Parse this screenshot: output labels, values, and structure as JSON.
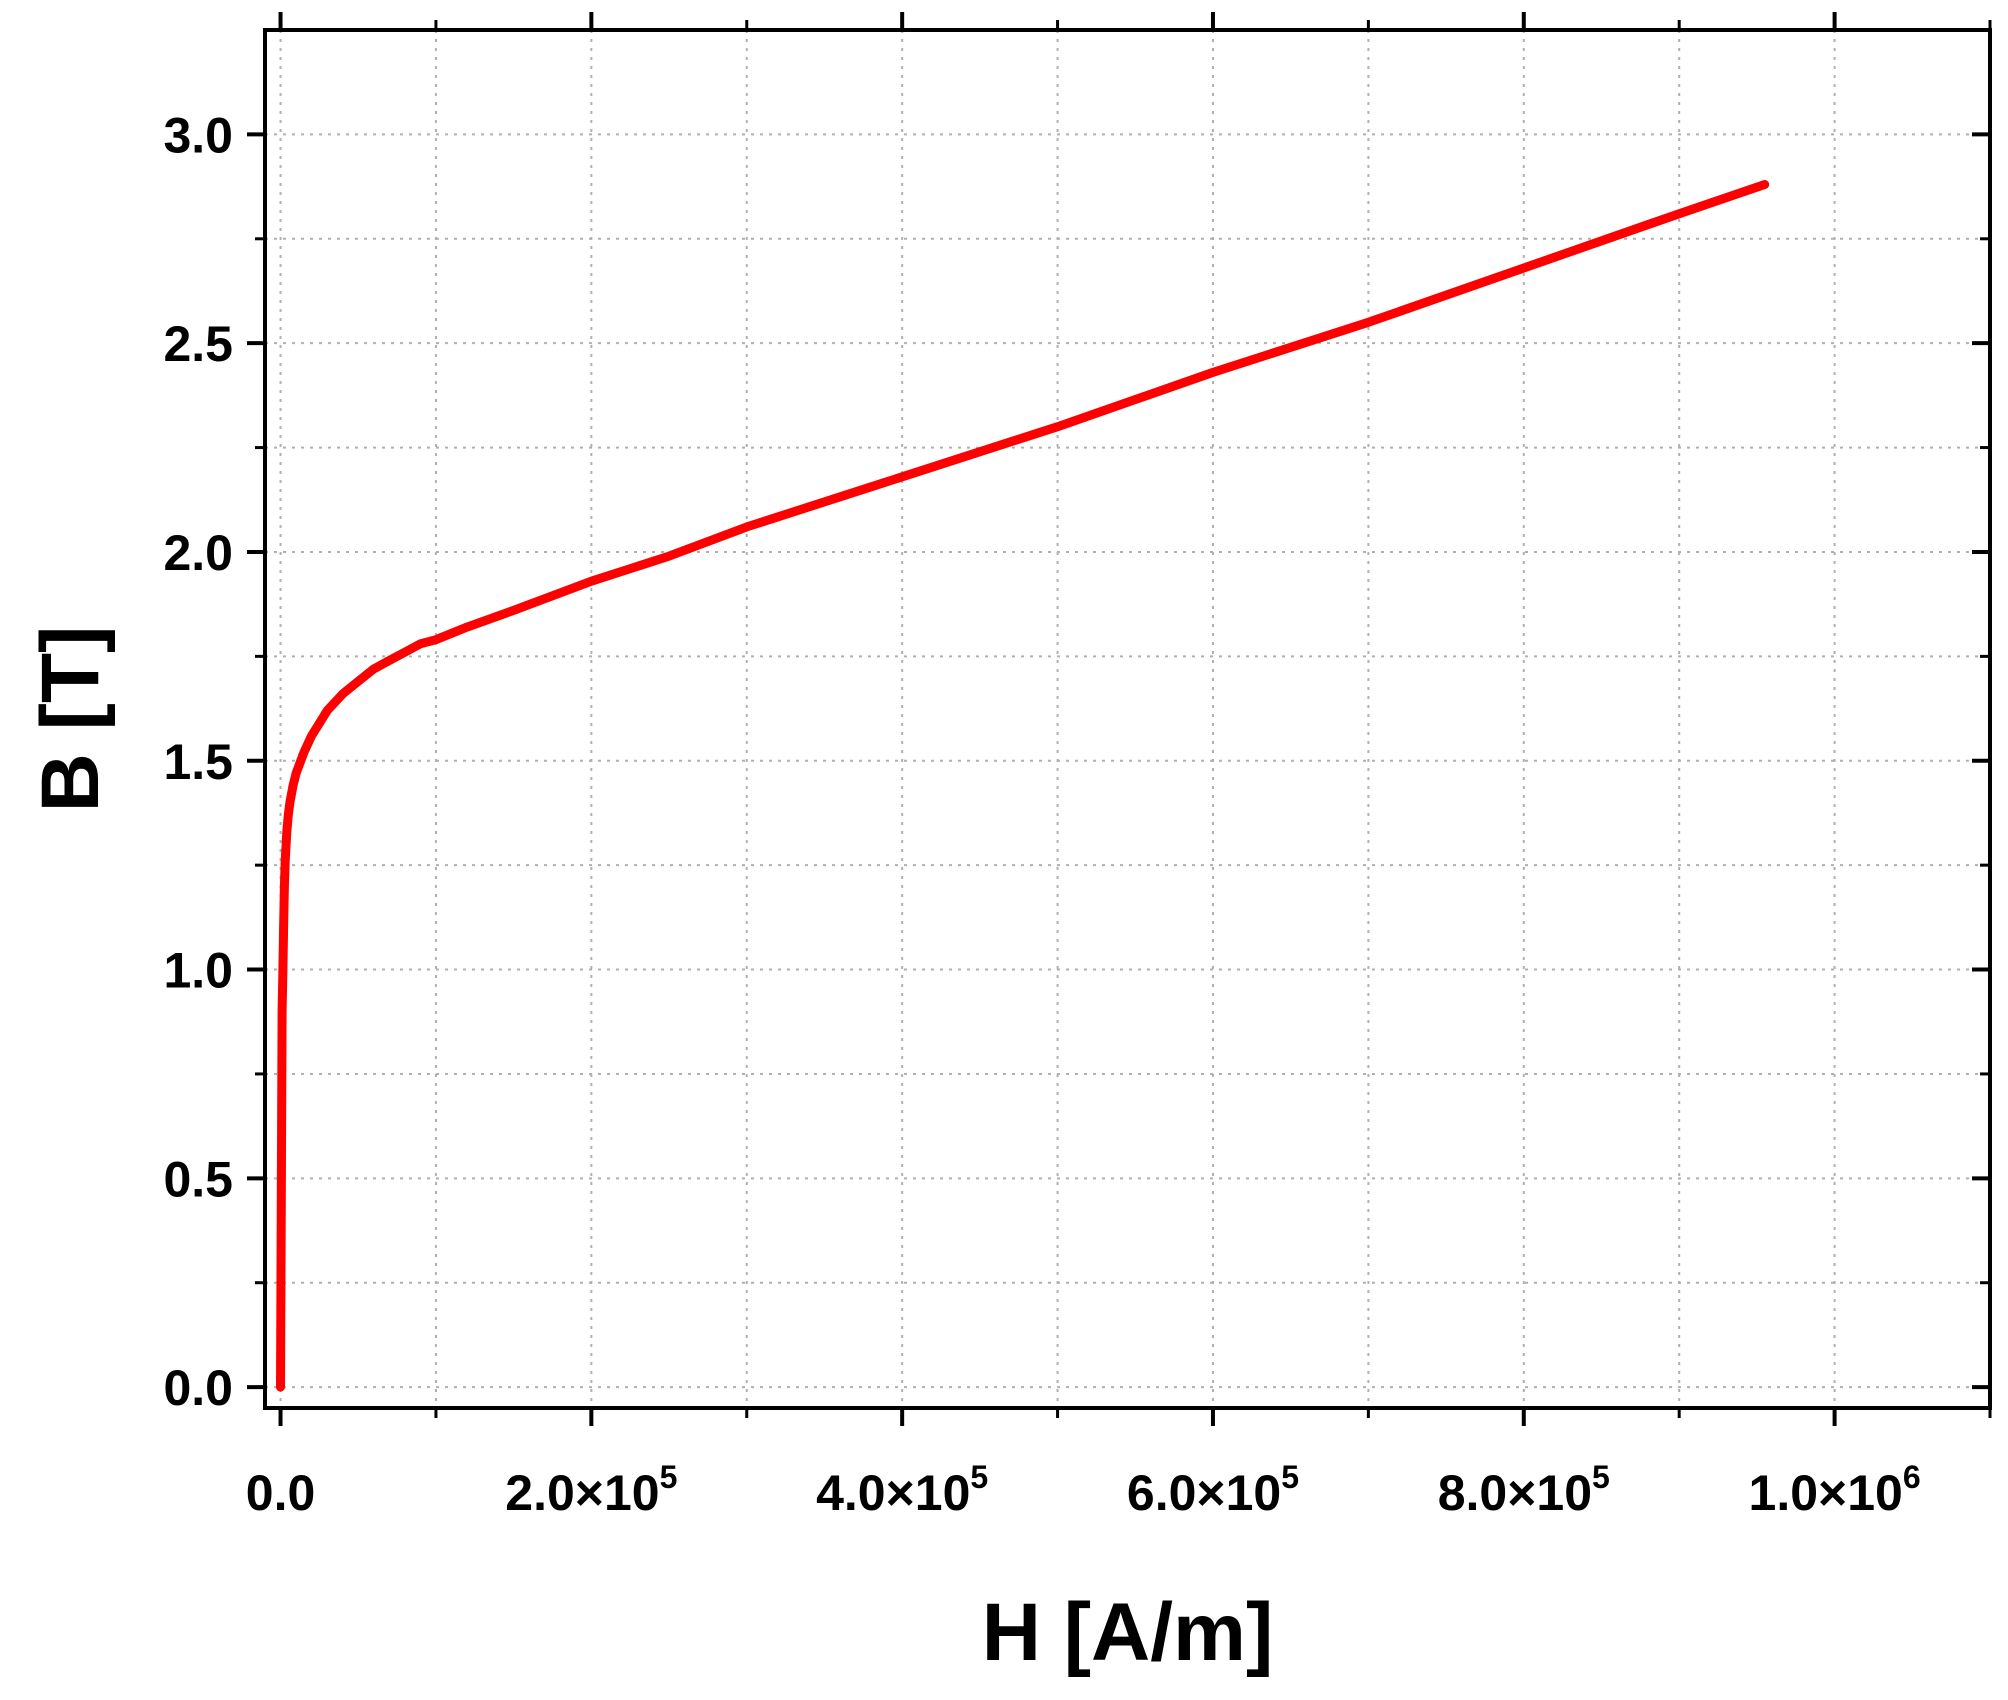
{
  "chart_data": {
    "type": "line",
    "title": "",
    "xlabel": "H [A/m]",
    "ylabel": "B [T]",
    "xlim": [
      -10000,
      1100000
    ],
    "ylim": [
      -0.05,
      3.25
    ],
    "grid": true,
    "line_color": "#ff0000",
    "x_ticks": [
      {
        "value": 0,
        "mantissa": "0.0",
        "exponent": ""
      },
      {
        "value": 200000,
        "mantissa": "2.0×10",
        "exponent": "5"
      },
      {
        "value": 400000,
        "mantissa": "4.0×10",
        "exponent": "5"
      },
      {
        "value": 600000,
        "mantissa": "6.0×10",
        "exponent": "5"
      },
      {
        "value": 800000,
        "mantissa": "8.0×10",
        "exponent": "5"
      },
      {
        "value": 1000000,
        "mantissa": "1.0×10",
        "exponent": "6"
      }
    ],
    "x_minor_ticks": [
      100000,
      300000,
      500000,
      700000,
      900000,
      1100000
    ],
    "y_ticks": [
      {
        "value": 0.0,
        "label": "0.0"
      },
      {
        "value": 0.5,
        "label": "0.5"
      },
      {
        "value": 1.0,
        "label": "1.0"
      },
      {
        "value": 1.5,
        "label": "1.5"
      },
      {
        "value": 2.0,
        "label": "2.0"
      },
      {
        "value": 2.5,
        "label": "2.5"
      },
      {
        "value": 3.0,
        "label": "3.0"
      }
    ],
    "y_minor_ticks": [
      0.25,
      0.75,
      1.25,
      1.75,
      2.25,
      2.75
    ],
    "series": [
      {
        "x": [
          0,
          1000,
          1500,
          2000,
          2500,
          3000,
          4000,
          5000,
          6000,
          8000,
          10000,
          15000,
          20000,
          25000,
          30000,
          40000,
          50000,
          60000,
          70000,
          80000,
          90000,
          100000,
          120000,
          150000,
          200000,
          250000,
          300000,
          400000,
          500000,
          600000,
          700000,
          800000,
          900000,
          955000
        ],
        "y": [
          0.0,
          0.9,
          1.0,
          1.1,
          1.2,
          1.26,
          1.33,
          1.37,
          1.4,
          1.44,
          1.47,
          1.52,
          1.56,
          1.59,
          1.62,
          1.66,
          1.69,
          1.72,
          1.74,
          1.76,
          1.78,
          1.79,
          1.82,
          1.86,
          1.93,
          1.99,
          2.06,
          2.18,
          2.3,
          2.43,
          2.55,
          2.68,
          2.81,
          2.88
        ]
      }
    ]
  }
}
